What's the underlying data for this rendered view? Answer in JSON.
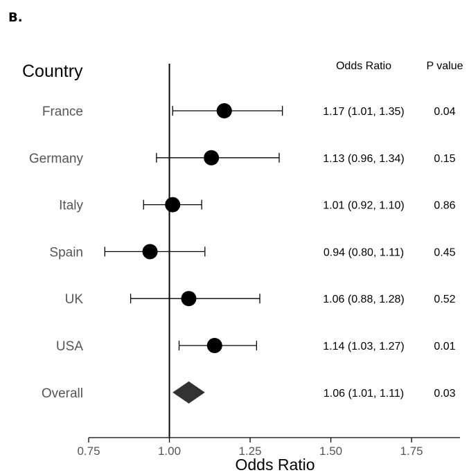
{
  "panel_label": "B.",
  "chart_data": {
    "type": "forest",
    "row_header": "Country",
    "columns": {
      "or_header": "Odds Ratio",
      "p_header": "P value"
    },
    "xlabel": "Odds Ratio",
    "xlim": [
      0.75,
      1.9
    ],
    "xticks": [
      0.75,
      1.0,
      1.25,
      1.5,
      1.75
    ],
    "xtick_labels": [
      "0.75",
      "1.00",
      "1.25",
      "1.50",
      "1.75"
    ],
    "reference_line": 1.0,
    "rows": [
      {
        "label": "France",
        "or": 1.17,
        "lo": 1.01,
        "hi": 1.35,
        "or_text": "1.17 (1.01, 1.35)",
        "p_text": "0.04",
        "marker": "point"
      },
      {
        "label": "Germany",
        "or": 1.13,
        "lo": 0.96,
        "hi": 1.34,
        "or_text": "1.13 (0.96, 1.34)",
        "p_text": "0.15",
        "marker": "point"
      },
      {
        "label": "Italy",
        "or": 1.01,
        "lo": 0.92,
        "hi": 1.1,
        "or_text": "1.01 (0.92, 1.10)",
        "p_text": "0.86",
        "marker": "point"
      },
      {
        "label": "Spain",
        "or": 0.94,
        "lo": 0.8,
        "hi": 1.11,
        "or_text": "0.94 (0.80, 1.11)",
        "p_text": "0.45",
        "marker": "point"
      },
      {
        "label": "UK",
        "or": 1.06,
        "lo": 0.88,
        "hi": 1.28,
        "or_text": "1.06 (0.88, 1.28)",
        "p_text": "0.52",
        "marker": "point"
      },
      {
        "label": "USA",
        "or": 1.14,
        "lo": 1.03,
        "hi": 1.27,
        "or_text": "1.14 (1.03, 1.27)",
        "p_text": "0.01",
        "marker": "point"
      },
      {
        "label": "Overall",
        "or": 1.06,
        "lo": 1.01,
        "hi": 1.11,
        "or_text": "1.06 (1.01, 1.11)",
        "p_text": "0.03",
        "marker": "diamond"
      }
    ],
    "colors": {
      "point": "#000000",
      "diamond": "#333333",
      "label": "#555555"
    }
  }
}
